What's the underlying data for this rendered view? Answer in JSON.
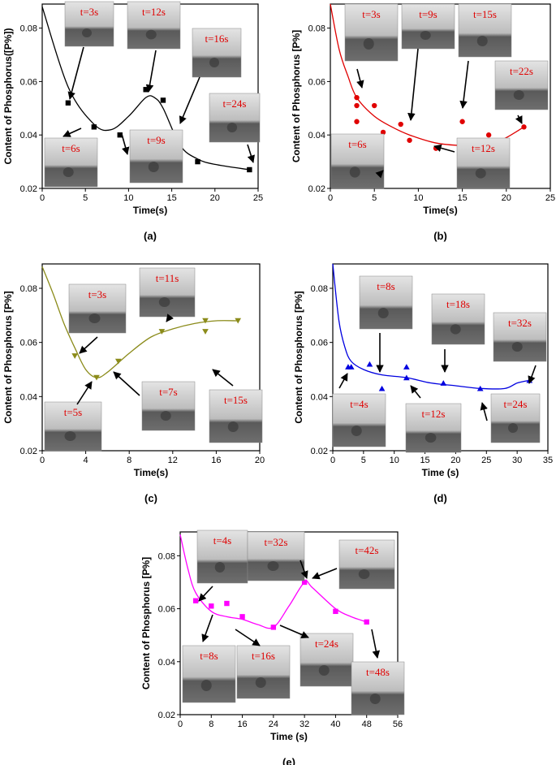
{
  "chart_data": [
    {
      "type": "scatter",
      "caption": "(a)",
      "xlabel": "Time(s)",
      "ylabel": "Content of Phosphorus([P%])",
      "xlim": [
        0,
        25
      ],
      "ylim": [
        0.02,
        0.089
      ],
      "xticks": [
        0,
        5,
        10,
        15,
        20,
        25
      ],
      "yticks": [
        0.02,
        0.04,
        0.06,
        0.08
      ],
      "marker": "square",
      "series": [
        {
          "color": "#000000",
          "x": [
            3,
            6,
            9,
            12,
            14,
            18,
            24
          ],
          "values": [
            0.052,
            0.043,
            0.04,
            0.057,
            0.053,
            0.03,
            0.027
          ]
        },
        {
          "color": "#000000",
          "x": [
            0,
            3,
            6,
            8,
            10,
            12,
            13,
            14,
            16,
            18,
            20,
            24
          ],
          "values": [
            0.088,
            0.058,
            0.044,
            0.042,
            0.047,
            0.054,
            0.054,
            0.05,
            0.036,
            0.031,
            0.029,
            0.027
          ]
        }
      ],
      "insets": [
        "t=3s",
        "t=12s",
        "t=16s",
        "t=24s",
        "t=6s",
        "t=9s"
      ]
    },
    {
      "type": "scatter",
      "caption": "(b)",
      "xlabel": "Time(s)",
      "ylabel": "Content of Phosphorus [P%]",
      "xlim": [
        0,
        25
      ],
      "ylim": [
        0.02,
        0.089
      ],
      "xticks": [
        0,
        5,
        10,
        15,
        20,
        25
      ],
      "yticks": [
        0.02,
        0.04,
        0.06,
        0.08
      ],
      "marker": "circle",
      "series": [
        {
          "color": "#e00000",
          "x": [
            3,
            3,
            3,
            5,
            6,
            8,
            9,
            12,
            15,
            18,
            22
          ],
          "values": [
            0.054,
            0.051,
            0.045,
            0.051,
            0.041,
            0.044,
            0.038,
            0.035,
            0.045,
            0.04,
            0.043
          ]
        },
        {
          "color": "#e00000",
          "x": [
            0,
            1,
            2,
            3,
            5,
            7,
            9,
            12,
            15,
            18,
            20,
            22
          ],
          "values": [
            0.089,
            0.072,
            0.062,
            0.054,
            0.047,
            0.043,
            0.04,
            0.037,
            0.036,
            0.036,
            0.039,
            0.043
          ]
        }
      ],
      "insets": [
        "t=3s",
        "t=9s",
        "t=15s",
        "t=22s",
        "t=6s",
        "t=12s"
      ]
    },
    {
      "type": "scatter",
      "caption": "(c)",
      "xlabel": "Time(s)",
      "ylabel": "Content of Phosphorus [P%]",
      "xlim": [
        0,
        20
      ],
      "ylim": [
        0.02,
        0.089
      ],
      "xticks": [
        0,
        4,
        8,
        12,
        16,
        20
      ],
      "yticks": [
        0.02,
        0.04,
        0.06,
        0.08
      ],
      "marker": "triangle-down",
      "series": [
        {
          "color": "#8b8b1a",
          "x": [
            3,
            5,
            7,
            11,
            15,
            15,
            18
          ],
          "values": [
            0.055,
            0.047,
            0.053,
            0.064,
            0.064,
            0.068,
            0.068
          ]
        },
        {
          "color": "#8b8b1a",
          "x": [
            0,
            1,
            2,
            3,
            4,
            5,
            6,
            8,
            10,
            12,
            14,
            16,
            18
          ],
          "values": [
            0.088,
            0.078,
            0.067,
            0.058,
            0.05,
            0.047,
            0.049,
            0.056,
            0.062,
            0.065,
            0.067,
            0.068,
            0.068
          ]
        }
      ],
      "insets": [
        "t=3s",
        "t=11s",
        "t=7s",
        "t=15s",
        "t=5s"
      ]
    },
    {
      "type": "scatter",
      "caption": "(d)",
      "xlabel": "Time (s)",
      "ylabel": "Content of Phosphorus [P%]",
      "xlim": [
        0,
        35
      ],
      "ylim": [
        0.02,
        0.089
      ],
      "xticks": [
        0,
        5,
        10,
        15,
        20,
        25,
        30,
        35
      ],
      "yticks": [
        0.02,
        0.04,
        0.06,
        0.08
      ],
      "marker": "triangle-up",
      "series": [
        {
          "color": "#0000e0",
          "x": [
            2.5,
            3,
            6,
            8,
            12,
            12,
            18,
            24,
            32
          ],
          "values": [
            0.051,
            0.051,
            0.052,
            0.043,
            0.051,
            0.047,
            0.045,
            0.043,
            0.046
          ]
        },
        {
          "color": "#0000e0",
          "x": [
            0,
            1,
            2,
            3,
            5,
            8,
            12,
            16,
            20,
            24,
            28,
            30,
            32
          ],
          "values": [
            0.089,
            0.068,
            0.058,
            0.053,
            0.05,
            0.048,
            0.047,
            0.045,
            0.044,
            0.043,
            0.043,
            0.045,
            0.046
          ]
        }
      ],
      "insets": [
        "t=8s",
        "t=18s",
        "t=32s",
        "t=4s",
        "t=12s",
        "t=24s"
      ]
    },
    {
      "type": "scatter",
      "caption": "(e)",
      "xlabel": "Time (s)",
      "ylabel": "Content of Phosphorus [P%]",
      "xlim": [
        0,
        56
      ],
      "ylim": [
        0.02,
        0.089
      ],
      "xticks": [
        0,
        8,
        16,
        24,
        32,
        40,
        48,
        56
      ],
      "yticks": [
        0.02,
        0.04,
        0.06,
        0.08
      ],
      "marker": "square",
      "series": [
        {
          "color": "#ff00ff",
          "x": [
            4,
            8,
            12,
            16,
            24,
            32,
            40,
            48
          ],
          "values": [
            0.063,
            0.061,
            0.062,
            0.057,
            0.053,
            0.07,
            0.059,
            0.055
          ]
        },
        {
          "color": "#ff00ff",
          "x": [
            0,
            2,
            4,
            8,
            12,
            16,
            20,
            24,
            28,
            32,
            34,
            40,
            44,
            48
          ],
          "values": [
            0.088,
            0.075,
            0.066,
            0.059,
            0.057,
            0.056,
            0.054,
            0.053,
            0.061,
            0.07,
            0.068,
            0.06,
            0.057,
            0.055
          ]
        }
      ],
      "insets": [
        "t=4s",
        "t=32s",
        "t=42s",
        "t=8s",
        "t=16s",
        "t=24s",
        "t=48s"
      ]
    }
  ]
}
